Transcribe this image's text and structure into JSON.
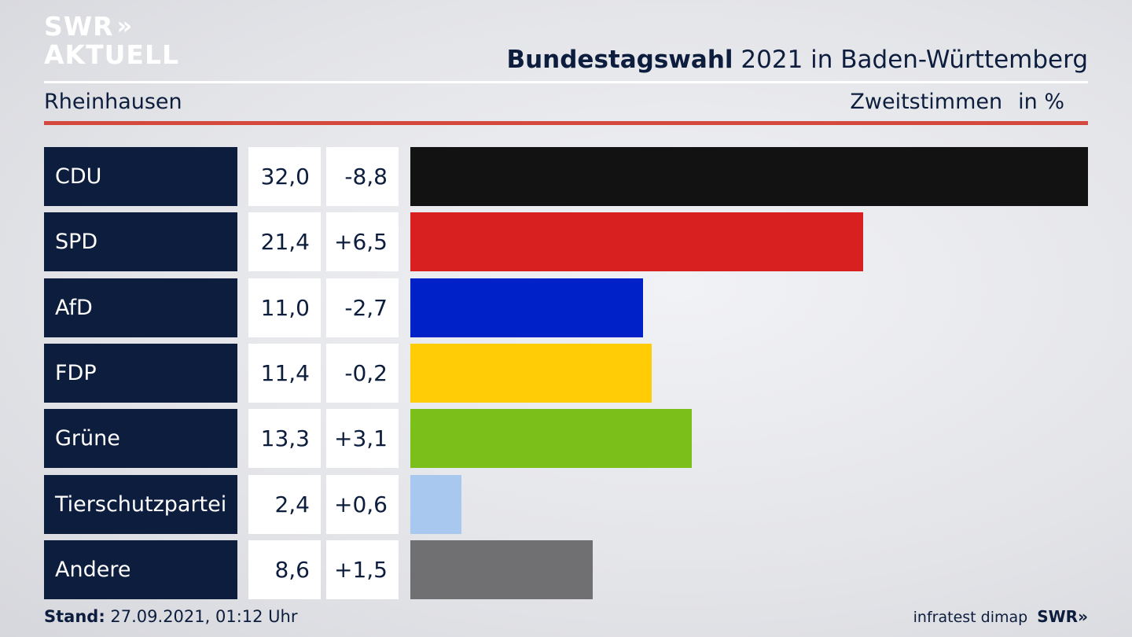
{
  "logo": {
    "line1": "SWR",
    "line1_chevron": "»",
    "line2": "AKTUELL"
  },
  "header": {
    "title_bold": "Bundestagswahl",
    "title_rest": " 2021 in Baden-Württemberg",
    "region": "Rheinhausen",
    "measure": "Zweitstimmen",
    "unit": "in %"
  },
  "chart_data": {
    "type": "bar",
    "orientation": "horizontal",
    "categories": [
      "CDU",
      "SPD",
      "AfD",
      "FDP",
      "Grüne",
      "Tierschutzpartei",
      "Andere"
    ],
    "values": [
      32.0,
      21.4,
      11.0,
      11.4,
      13.3,
      2.4,
      8.6
    ],
    "value_labels": [
      "32,0",
      "21,4",
      "11,0",
      "11,4",
      "13,3",
      "2,4",
      "8,6"
    ],
    "changes": [
      -8.8,
      6.5,
      -2.7,
      -0.2,
      3.1,
      0.6,
      1.5
    ],
    "change_labels": [
      "-8,8",
      "+6,5",
      "-2,7",
      "-0,2",
      "+3,1",
      "+0,6",
      "+1,5"
    ],
    "colors": [
      "#121212",
      "#d82020",
      "#0021c8",
      "#ffcc05",
      "#7bbf1a",
      "#a9c8f0",
      "#707072"
    ],
    "xlim": [
      0,
      32.0
    ]
  },
  "footer": {
    "stand_label": "Stand:",
    "stand_value": " 27.09.2021, 01:12 Uhr",
    "source": "infratest dimap",
    "brand": "SWR»"
  }
}
